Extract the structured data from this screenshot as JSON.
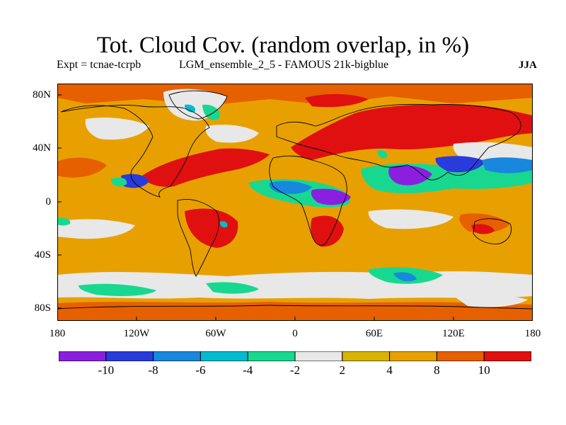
{
  "title": "Tot. Cloud Cov. (random overlap, in %)",
  "subtitle": {
    "expt": "Expt = tcnae-tcrpb",
    "run": "LGM_ensemble_2_5 - FAMOUS 21k-bigblue",
    "season": "JJA"
  },
  "map": {
    "lat_labels": [
      "80N",
      "40N",
      "0",
      "40S",
      "80S"
    ],
    "lon_labels": [
      "180",
      "120W",
      "60W",
      "0",
      "60E",
      "120E",
      "180"
    ]
  },
  "colorbar": {
    "colors": [
      "#8a1fe0",
      "#2a3bdc",
      "#1888dc",
      "#00bcd0",
      "#18d890",
      "#e8e8e8",
      "#d6b400",
      "#e8a000",
      "#e66000",
      "#e01010"
    ],
    "labels": [
      "-10",
      "-8",
      "-6",
      "-4",
      "-2",
      "2",
      "4",
      "8",
      "10"
    ]
  }
}
